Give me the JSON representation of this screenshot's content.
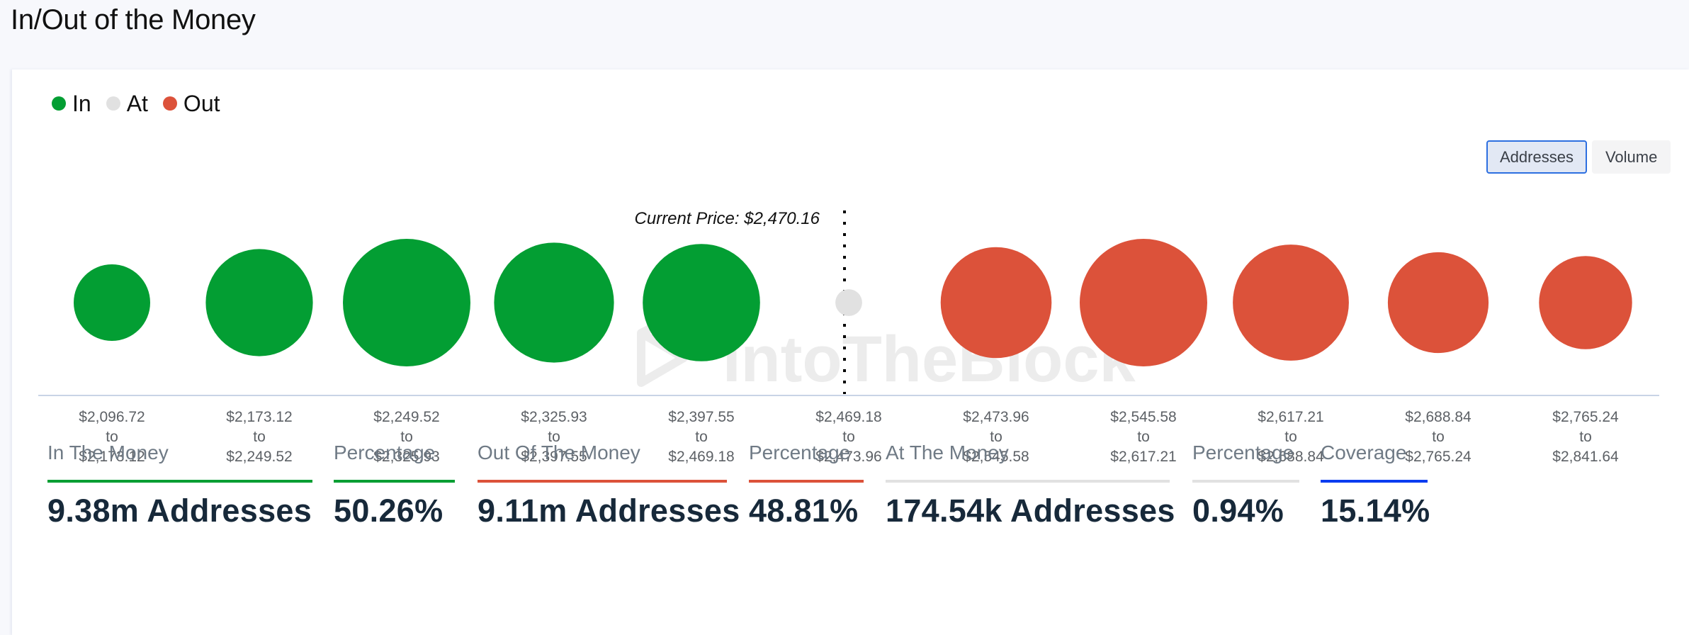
{
  "page": {
    "title": "In/Out of the Money"
  },
  "colors": {
    "in": "#039e33",
    "at": "#e1e1e1",
    "out": "#dc523a",
    "coverage": "#0a3cf0",
    "axis": "#c9d4e6",
    "watermark": "#ececec"
  },
  "legend": [
    {
      "key": "in",
      "label": "In"
    },
    {
      "key": "at",
      "label": "At"
    },
    {
      "key": "out",
      "label": "Out"
    }
  ],
  "toggle": {
    "options": [
      "Addresses",
      "Volume"
    ],
    "selected": "Addresses"
  },
  "watermark": "IntoTheBlock",
  "chart_data": {
    "type": "bubble",
    "title": "In/Out of the Money",
    "metric": "Addresses",
    "current_price_label": "Current Price: $2,470.16",
    "current_price": 2470.16,
    "categories": [
      {
        "from": "$2,096.72",
        "to": "$2,173.12",
        "status": "in",
        "relative_size": 0.6
      },
      {
        "from": "$2,173.12",
        "to": "$2,249.52",
        "status": "in",
        "relative_size": 0.84
      },
      {
        "from": "$2,249.52",
        "to": "$2,325.93",
        "status": "in",
        "relative_size": 1.0
      },
      {
        "from": "$2,325.93",
        "to": "$2,397.55",
        "status": "in",
        "relative_size": 0.94
      },
      {
        "from": "$2,397.55",
        "to": "$2,469.18",
        "status": "in",
        "relative_size": 0.92
      },
      {
        "from": "$2,469.18",
        "to": "$2,473.96",
        "status": "at",
        "relative_size": 0.21
      },
      {
        "from": "$2,473.96",
        "to": "$2,545.58",
        "status": "out",
        "relative_size": 0.87
      },
      {
        "from": "$2,545.58",
        "to": "$2,617.21",
        "status": "out",
        "relative_size": 1.0
      },
      {
        "from": "$2,617.21",
        "to": "$2,688.84",
        "status": "out",
        "relative_size": 0.91
      },
      {
        "from": "$2,688.84",
        "to": "$2,765.24",
        "status": "out",
        "relative_size": 0.79
      },
      {
        "from": "$2,765.24",
        "to": "$2,841.64",
        "status": "out",
        "relative_size": 0.73
      }
    ],
    "range_joiner": "to"
  },
  "stats": [
    {
      "label": "In The Money",
      "value": "9.38m Addresses",
      "color_key": "in"
    },
    {
      "label": "Percentage",
      "value": "50.26%",
      "color_key": "in"
    },
    {
      "label": "Out Of The Money",
      "value": "9.11m Addresses",
      "color_key": "out"
    },
    {
      "label": "Percentage",
      "value": "48.81%",
      "color_key": "out"
    },
    {
      "label": "At The Money",
      "value": "174.54k Addresses",
      "color_key": "at"
    },
    {
      "label": "Percentage",
      "value": "0.94%",
      "color_key": "at"
    },
    {
      "label": "Coverage",
      "value": "15.14%",
      "color_key": "coverage"
    }
  ]
}
